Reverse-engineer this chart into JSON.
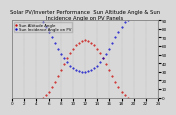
{
  "title": "Solar PV/Inverter Performance  Sun Altitude Angle & Sun Incidence Angle on PV Panels",
  "bg_color": "#d8d8d8",
  "plot_bg": "#d8d8d8",
  "grid_color": "#888888",
  "red_color": "#cc0000",
  "blue_color": "#0000cc",
  "ylim": [
    0,
    90
  ],
  "xlim": [
    0,
    24
  ],
  "xticks": [
    0,
    2,
    4,
    6,
    8,
    10,
    12,
    14,
    16,
    18,
    20,
    22,
    24
  ],
  "yticks_right": [
    0,
    10,
    20,
    30,
    40,
    50,
    60,
    70,
    80,
    90
  ],
  "sun_altitude_x": [
    5.0,
    5.5,
    6.0,
    6.5,
    7.0,
    7.5,
    8.0,
    8.5,
    9.0,
    9.5,
    10.0,
    10.5,
    11.0,
    11.5,
    12.0,
    12.5,
    13.0,
    13.5,
    14.0,
    14.5,
    15.0,
    15.5,
    16.0,
    16.5,
    17.0,
    17.5,
    18.0,
    18.5,
    19.0
  ],
  "sun_altitude_y": [
    0,
    3,
    7,
    12,
    18,
    25,
    32,
    39,
    46,
    52,
    57,
    61,
    64,
    66,
    67,
    66,
    64,
    61,
    57,
    52,
    46,
    39,
    32,
    25,
    18,
    12,
    7,
    3,
    0
  ],
  "sun_incidence_x": [
    5.0,
    5.5,
    6.0,
    6.5,
    7.0,
    7.5,
    8.0,
    8.5,
    9.0,
    9.5,
    10.0,
    10.5,
    11.0,
    11.5,
    12.0,
    12.5,
    13.0,
    13.5,
    14.0,
    14.5,
    15.0,
    15.5,
    16.0,
    16.5,
    17.0,
    17.5,
    18.0,
    18.5,
    19.0
  ],
  "sun_incidence_y": [
    88,
    82,
    76,
    70,
    63,
    57,
    51,
    46,
    41,
    37,
    34,
    32,
    31,
    30,
    30,
    31,
    32,
    34,
    37,
    41,
    46,
    51,
    57,
    63,
    70,
    76,
    82,
    88,
    90
  ],
  "legend_red": "Sun Altitude Angle",
  "legend_blue": "Sun Incidence Angle on PV",
  "title_fontsize": 3.8,
  "tick_fontsize": 3.0,
  "legend_fontsize": 2.8,
  "marker_size": 0.9
}
